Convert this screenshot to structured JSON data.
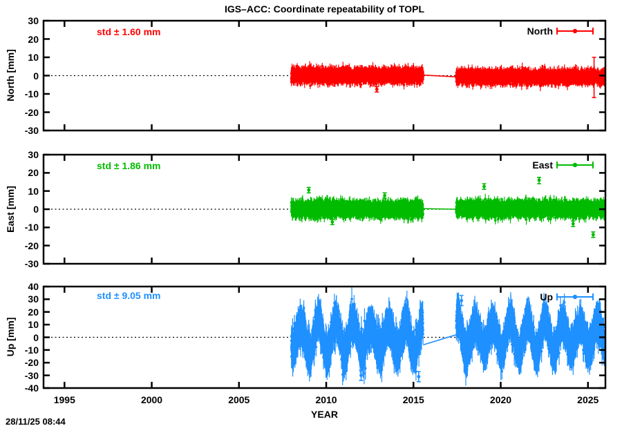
{
  "timestamp": "28/11/25 08:44",
  "chart_data": {
    "type": "scatter",
    "title": "IGS–ACC: Coordinate repeatability of TOPL",
    "xlabel": "YEAR",
    "x_range": [
      1993.8,
      2026.0
    ],
    "x_tick_labels": [
      "1995",
      "2000",
      "2005",
      "2010",
      "2015",
      "2020",
      "2025"
    ],
    "x_tick_values": [
      1995,
      2000,
      2005,
      2010,
      2015,
      2020,
      2025
    ],
    "grid": false,
    "legend_position": "top-right-inside",
    "marker": "filled-point-with-vertical-error-bar",
    "zero_line_style": "black-dotted",
    "panels": [
      {
        "name": "North",
        "ylabel": "North [mm]",
        "legend_label": "North",
        "std_label": "std ± 1.60 mm",
        "std_mm": 1.6,
        "color": "#ff0000",
        "ylim": [
          -30,
          30
        ],
        "y_ticks": [
          30,
          20,
          10,
          0,
          -10,
          -20,
          -30
        ],
        "seed": 11,
        "data_segments": [
          {
            "t_start": 2008.0,
            "t_end": 2015.55,
            "mean": 0.1,
            "noise_std_mm": 1.6,
            "point_error_mm": 2.2
          },
          {
            "t_start": 2017.45,
            "t_end": 2025.95,
            "mean": -0.7,
            "noise_std_mm": 1.5,
            "point_error_mm": 2.2
          }
        ],
        "gap_line": {
          "from": [
            2015.55,
            0.3
          ],
          "to": [
            2017.45,
            -0.7
          ]
        },
        "outliers": [
          {
            "t": 2012.9,
            "y": -7.5,
            "lo": -9.0,
            "hi": -6.0
          },
          {
            "t": 2025.35,
            "y": 0.0,
            "lo": -12.0,
            "hi": 10.0
          }
        ]
      },
      {
        "name": "East",
        "ylabel": "East [mm]",
        "legend_label": "East",
        "std_label": "std ± 1.86 mm",
        "std_mm": 1.86,
        "color": "#00bb00",
        "ylim": [
          -30,
          30
        ],
        "y_ticks": [
          30,
          20,
          10,
          0,
          -10,
          -20,
          -30
        ],
        "seed": 23,
        "data_segments": [
          {
            "t_start": 2008.0,
            "t_end": 2015.55,
            "mean": 0.0,
            "noise_std_mm": 1.8,
            "point_error_mm": 2.3
          },
          {
            "t_start": 2017.45,
            "t_end": 2025.95,
            "mean": 0.2,
            "noise_std_mm": 1.8,
            "point_error_mm": 2.3
          }
        ],
        "gap_line": {
          "from": [
            2015.55,
            0.3
          ],
          "to": [
            2017.45,
            0.0
          ]
        },
        "outliers": [
          {
            "t": 2009.0,
            "y": 10.5,
            "lo": 9.0,
            "hi": 12.0
          },
          {
            "t": 2013.35,
            "y": 7.5,
            "lo": 6.0,
            "hi": 9.0
          },
          {
            "t": 2010.35,
            "y": -7.0,
            "lo": -8.5,
            "hi": -5.5
          },
          {
            "t": 2019.05,
            "y": 12.5,
            "lo": 11.0,
            "hi": 14.0
          },
          {
            "t": 2022.2,
            "y": 16.0,
            "lo": 14.0,
            "hi": 17.5
          },
          {
            "t": 2024.15,
            "y": -8.0,
            "lo": -9.5,
            "hi": -6.5
          },
          {
            "t": 2025.3,
            "y": -14.0,
            "lo": -15.5,
            "hi": -12.5
          }
        ]
      },
      {
        "name": "Up",
        "ylabel": "Up [mm]",
        "legend_label": "Up",
        "std_label": "std ± 9.05 mm",
        "std_mm": 9.05,
        "color": "#1e90ff",
        "ylim": [
          -40,
          40
        ],
        "y_ticks": [
          40,
          30,
          20,
          10,
          0,
          -10,
          -20,
          -30,
          -40
        ],
        "seed": 37,
        "seasonal": {
          "amplitude_mm": 11.5,
          "peak_phase_yr": 0.55
        },
        "amp_boost": {
          "t_start": 2017.45,
          "t_end": 2018.05,
          "factor": 1.5
        },
        "data_segments": [
          {
            "t_start": 2008.0,
            "t_end": 2015.55,
            "mean": 0.0,
            "noise_std_mm": 5.8,
            "point_error_mm": 8.0
          },
          {
            "t_start": 2017.45,
            "t_end": 2025.95,
            "mean": 0.5,
            "noise_std_mm": 5.3,
            "point_error_mm": 8.0
          }
        ],
        "gap_line": {
          "from": [
            2015.55,
            -6.0
          ],
          "to": [
            2017.45,
            2.0
          ]
        },
        "outliers": [
          {
            "t": 2015.3,
            "y": -31.0,
            "lo": -35.0,
            "hi": -27.0
          },
          {
            "t": 2012.0,
            "y": -30.0,
            "lo": -34.0,
            "hi": -26.0
          },
          {
            "t": 2017.75,
            "y": 29.0,
            "lo": 25.0,
            "hi": 33.0
          }
        ]
      }
    ]
  }
}
